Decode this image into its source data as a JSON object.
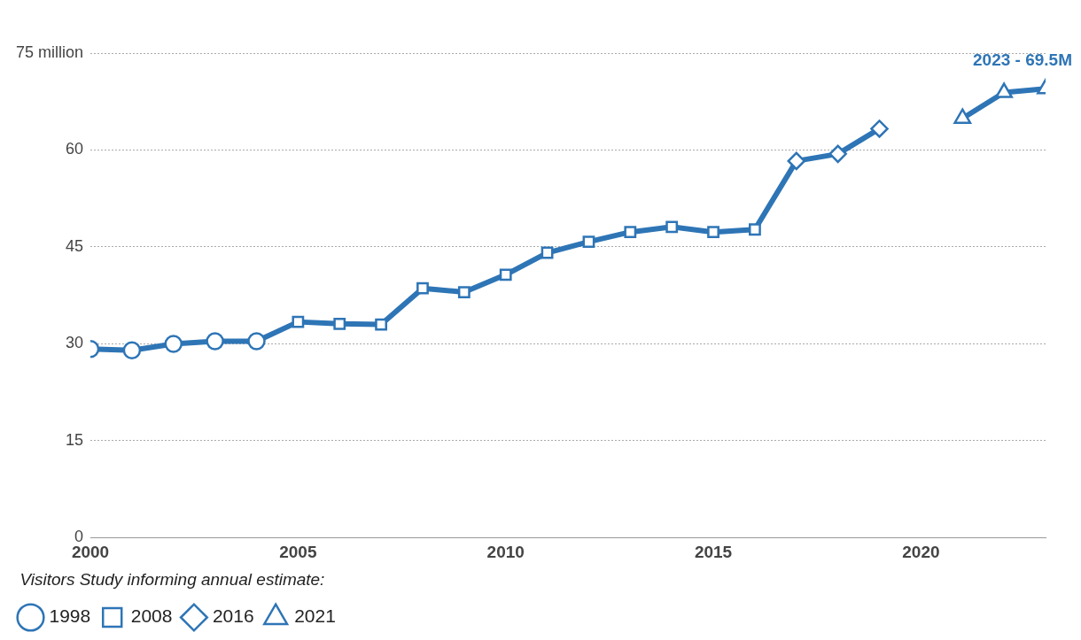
{
  "chart_data": {
    "type": "line",
    "legend_title": "Visitors Study informing annual estimate:",
    "legend": "bottom left",
    "grid": "y",
    "xlim": [
      2000,
      2023
    ],
    "xticks": [
      2000,
      2005,
      2010,
      2015,
      2020
    ],
    "ylim": [
      0,
      75
    ],
    "yticks": [
      0,
      15,
      30,
      45,
      60,
      {
        "value": 75,
        "label": "75 million"
      }
    ],
    "series": [
      {
        "name": "1998",
        "color": "#2e75b6",
        "marker": "circle",
        "x": [
          2000,
          2001,
          2002,
          2003,
          2004
        ],
        "values": [
          29.2,
          29.0,
          30.0,
          30.4,
          30.4
        ]
      },
      {
        "name": "2008",
        "color": "#2e75b6",
        "marker": "square",
        "x": [
          2004,
          2005,
          2006,
          2007,
          2008,
          2009,
          2010,
          2011,
          2012,
          2013,
          2014,
          2015,
          2016
        ],
        "values": [
          30.4,
          33.4,
          33.1,
          33.0,
          38.6,
          38.0,
          40.7,
          44.1,
          45.8,
          47.3,
          48.1,
          47.3,
          47.7
        ]
      },
      {
        "name": "2016",
        "color": "#2e75b6",
        "marker": "diamond",
        "x": [
          2016,
          2017,
          2018,
          2019
        ],
        "values": [
          47.7,
          58.3,
          59.4,
          63.3
        ]
      },
      {
        "name": "2021",
        "color": "#2e75b6",
        "marker": "triangle",
        "x": [
          2021,
          2022,
          2023
        ],
        "values": [
          64.9,
          68.9,
          69.5
        ]
      }
    ],
    "annotations": [
      {
        "text": "2023 - 69.5M",
        "x": 2023,
        "y": 69.5
      }
    ]
  }
}
